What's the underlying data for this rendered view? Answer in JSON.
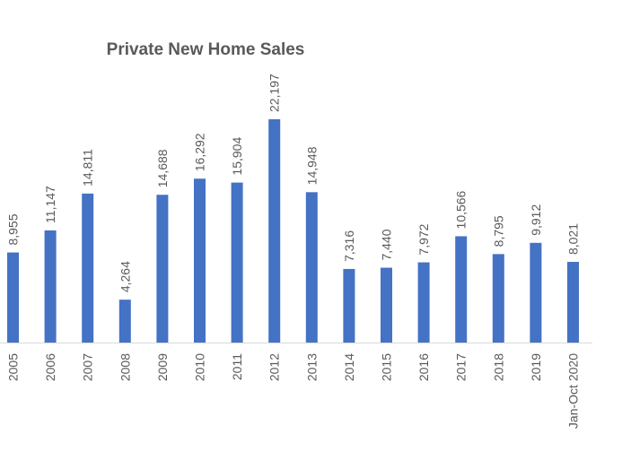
{
  "chart_data": {
    "type": "bar",
    "title": "Private New Home Sales",
    "categories": [
      "2005",
      "2006",
      "2007",
      "2008",
      "2009",
      "2010",
      "2011",
      "2012",
      "2013",
      "2014",
      "2015",
      "2016",
      "2017",
      "2018",
      "2019",
      "Jan-Oct 2020"
    ],
    "values": [
      8955,
      11147,
      14811,
      4264,
      14688,
      16292,
      15904,
      22197,
      14948,
      7316,
      7440,
      7972,
      10566,
      8795,
      9912,
      8021
    ],
    "data_labels": [
      "8,955",
      "11,147",
      "14,811",
      "4,264",
      "14,688",
      "16,292",
      "15,904",
      "22,197",
      "14,948",
      "7,316",
      "7,440",
      "7,972",
      "10,566",
      "8,795",
      "9,912",
      "8,021"
    ],
    "xlabel": "",
    "ylabel": "",
    "ylim": [
      0,
      22197
    ],
    "grid": false,
    "legend": "none",
    "bar_color": "#4472C4",
    "axis_color": "#D9D9D9",
    "text_color": "#595959"
  }
}
